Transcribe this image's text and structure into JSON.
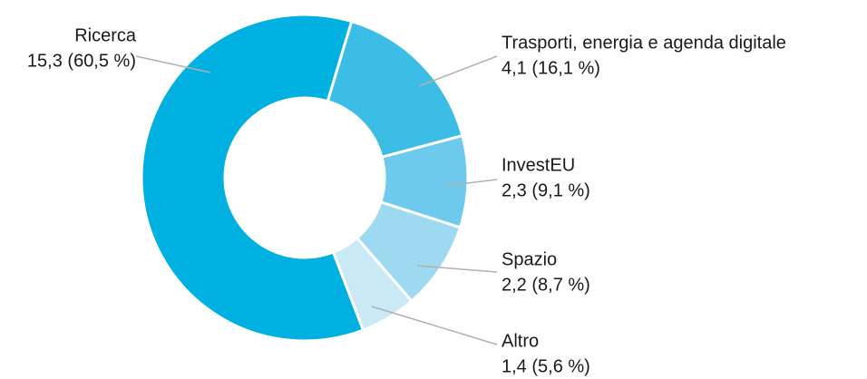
{
  "chart_data": {
    "type": "pie",
    "categories": [
      "Ricerca",
      "Trasporti, energia e agenda digitale",
      "InvestEU",
      "Spazio",
      "Altro"
    ],
    "values": [
      15.3,
      4.1,
      2.3,
      2.2,
      1.4
    ],
    "value_labels": [
      "15,3 (60,5 %)",
      "4,1 (16,1 %)",
      "2,3 (9,1 %)",
      "2,2 (8,7 %)",
      "1,4 (5,6 %)"
    ],
    "colors": [
      "#00b0e0",
      "#3bbde6",
      "#6dcaec",
      "#9dd9f0",
      "#c9e9f6"
    ]
  }
}
